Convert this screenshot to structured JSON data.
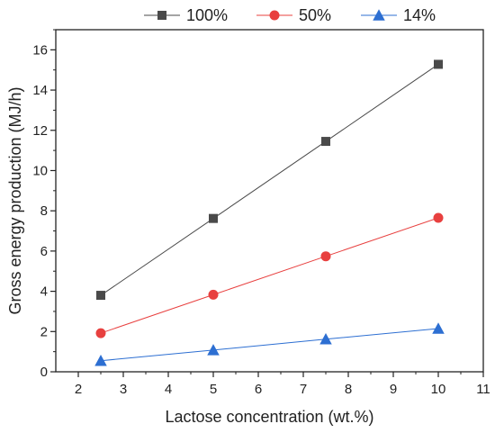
{
  "chart_data": {
    "type": "line",
    "xlabel": "Lactose concentration (wt.%)",
    "ylabel": "Gross energy production (MJ/h)",
    "xlim": [
      1.5,
      11
    ],
    "ylim": [
      0,
      17
    ],
    "xticks": [
      2,
      3,
      4,
      5,
      6,
      7,
      8,
      9,
      10,
      11
    ],
    "yticks": [
      0,
      2,
      4,
      6,
      8,
      10,
      12,
      14,
      16
    ],
    "grid": false,
    "legend_position": "top",
    "series": [
      {
        "name": "100%",
        "marker": "square",
        "color": "#4a4a4a",
        "x": [
          2.5,
          5,
          7.5,
          10
        ],
        "y": [
          3.8,
          7.62,
          11.45,
          15.28
        ]
      },
      {
        "name": "50%",
        "marker": "circle",
        "color": "#e8403f",
        "x": [
          2.5,
          5,
          7.5,
          10
        ],
        "y": [
          1.92,
          3.83,
          5.74,
          7.65
        ]
      },
      {
        "name": "14%",
        "marker": "triangle",
        "color": "#2d6fd2",
        "x": [
          2.5,
          5,
          7.5,
          10
        ],
        "y": [
          0.55,
          1.08,
          1.62,
          2.15
        ]
      }
    ]
  }
}
